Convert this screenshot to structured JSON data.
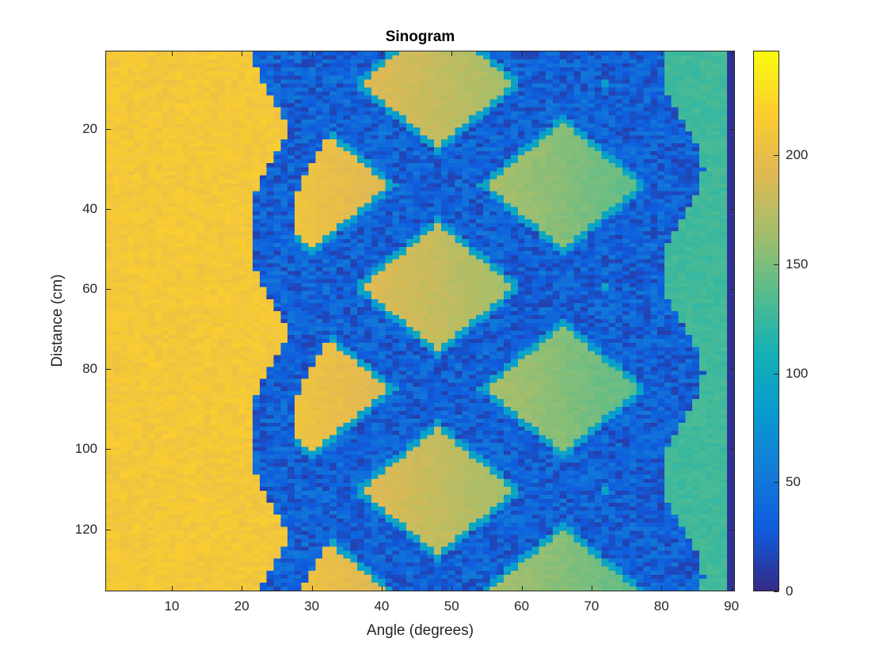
{
  "chart_data": {
    "type": "heatmap",
    "title": "Sinogram",
    "xlabel": "Angle (degrees)",
    "ylabel": "Distance (cm)",
    "xlim": [
      0.5,
      90.5
    ],
    "ylim": [
      0.5,
      135.5
    ],
    "x_ticks": [
      10,
      20,
      30,
      40,
      50,
      60,
      70,
      80,
      90
    ],
    "y_ticks": [
      20,
      40,
      60,
      80,
      100,
      120
    ],
    "y_direction": "reverse",
    "colormap": "parula",
    "colorbar": {
      "range": [
        0,
        248
      ],
      "ticks": [
        0,
        50,
        100,
        150,
        200
      ]
    },
    "grid": false,
    "regions": [
      {
        "desc": "high-value plateau",
        "angle_range": [
          1,
          22
        ],
        "value": 210
      },
      {
        "desc": "low-value sinusoidal bands forming diamond lattice",
        "angle_range": [
          22,
          84
        ],
        "value": 10
      },
      {
        "desc": "diamond interiors gradient",
        "angle_range": [
          30,
          75
        ],
        "value_range": [
          195,
          135
        ]
      },
      {
        "desc": "right plateau",
        "angle_range": [
          83,
          89
        ],
        "value": 130
      },
      {
        "desc": "last column",
        "angle_range": [
          89.5,
          90.5
        ],
        "value": 5
      }
    ]
  },
  "title": "Sinogram",
  "axes": {
    "xlabel": "Angle (degrees)",
    "ylabel": "Distance (cm)",
    "xticks": [
      "10",
      "20",
      "30",
      "40",
      "50",
      "60",
      "70",
      "80",
      "90"
    ],
    "yticks": [
      "20",
      "40",
      "60",
      "80",
      "100",
      "120"
    ]
  },
  "colorbar": {
    "ticks": [
      "0",
      "50",
      "100",
      "150",
      "200"
    ]
  }
}
